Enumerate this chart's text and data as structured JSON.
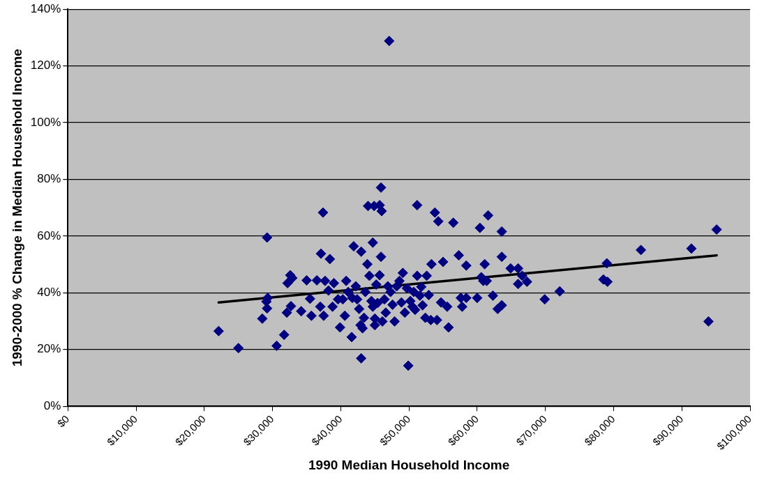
{
  "chart_data": {
    "type": "scatter",
    "xlabel": "1990 Median Household Income",
    "ylabel": "1990-2000 % Change in Median Household Income",
    "xlim": [
      0,
      100000
    ],
    "xticks": [
      {
        "value": 0,
        "label": "$0"
      },
      {
        "value": 10000,
        "label": "$10,000"
      },
      {
        "value": 20000,
        "label": "$20,000"
      },
      {
        "value": 30000,
        "label": "$30,000"
      },
      {
        "value": 40000,
        "label": "$40,000"
      },
      {
        "value": 50000,
        "label": "$50,000"
      },
      {
        "value": 60000,
        "label": "$60,000"
      },
      {
        "value": 70000,
        "label": "$70,000"
      },
      {
        "value": 80000,
        "label": "$80,000"
      },
      {
        "value": 90000,
        "label": "$90,000"
      },
      {
        "value": 100000,
        "label": "$100,000"
      }
    ],
    "ylim": [
      0,
      140
    ],
    "yticks": [
      {
        "value": 0,
        "label": "0%"
      },
      {
        "value": 20,
        "label": "20%"
      },
      {
        "value": 40,
        "label": "40%"
      },
      {
        "value": 60,
        "label": "60%"
      },
      {
        "value": 80,
        "label": "80%"
      },
      {
        "value": 100,
        "label": "100%"
      },
      {
        "value": 120,
        "label": "120%"
      },
      {
        "value": 140,
        "label": "140%"
      }
    ],
    "grid": "y",
    "legend": false,
    "marker": "diamond",
    "series": [
      {
        "type": "scatter",
        "color": "#000080",
        "x": [
          22100,
          25000,
          28500,
          29200,
          29100,
          29300,
          29200,
          30600,
          31700,
          32100,
          32200,
          32600,
          32700,
          32900,
          34200,
          35000,
          35500,
          35700,
          36500,
          37000,
          37100,
          37400,
          37500,
          37700,
          38200,
          38400,
          38800,
          39000,
          39600,
          39900,
          40300,
          40600,
          40800,
          41100,
          41600,
          41700,
          41900,
          42200,
          42400,
          42700,
          42900,
          43000,
          43200,
          43000,
          43400,
          43600,
          43900,
          44000,
          44200,
          44500,
          44700,
          44900,
          44700,
          45000,
          45000,
          45200,
          45400,
          45700,
          45900,
          46000,
          45900,
          45700,
          46100,
          46400,
          46600,
          46900,
          47100,
          47300,
          47600,
          47900,
          48200,
          48600,
          48900,
          49100,
          49400,
          49700,
          49900,
          50200,
          50500,
          50700,
          50900,
          51200,
          51200,
          51600,
          51800,
          52000,
          52400,
          52600,
          52900,
          53200,
          53300,
          53800,
          54100,
          54300,
          54700,
          55000,
          55600,
          55800,
          56500,
          57300,
          57600,
          57800,
          58400,
          58400,
          60000,
          60400,
          60600,
          60900,
          61100,
          61600,
          61400,
          62300,
          63000,
          63600,
          63600,
          63600,
          64900,
          66000,
          66000,
          66600,
          67300,
          69900,
          72100,
          78500,
          79000,
          79100,
          84000,
          91400,
          93900,
          95100
        ],
        "values": [
          26.5,
          20.5,
          30.9,
          59.5,
          36.9,
          38.2,
          34.5,
          21.3,
          25.2,
          33.0,
          43.4,
          46.2,
          35.3,
          45.2,
          33.5,
          44.4,
          37.9,
          31.9,
          44.4,
          35.1,
          53.8,
          68.3,
          31.9,
          44.2,
          40.8,
          51.9,
          35.1,
          43.4,
          37.7,
          27.8,
          37.7,
          31.9,
          44.2,
          40.3,
          24.4,
          38.2,
          56.4,
          42.3,
          37.7,
          34.3,
          28.6,
          16.9,
          27.5,
          54.5,
          31.2,
          40.3,
          50.1,
          70.6,
          46.0,
          37.1,
          35.1,
          70.6,
          57.7,
          30.9,
          28.6,
          42.9,
          36.4,
          70.9,
          77.1,
          68.8,
          52.7,
          46.2,
          29.9,
          37.7,
          33.0,
          42.3,
          128.8,
          40.3,
          35.8,
          29.9,
          42.3,
          44.2,
          36.6,
          47.0,
          33.0,
          41.6,
          14.3,
          37.1,
          35.1,
          40.3,
          34.0,
          70.9,
          46.0,
          39.0,
          42.1,
          35.6,
          31.2,
          46.0,
          39.2,
          30.4,
          50.1,
          68.3,
          30.4,
          65.2,
          36.6,
          50.9,
          35.1,
          27.8,
          64.7,
          53.2,
          38.2,
          35.1,
          49.6,
          38.2,
          38.2,
          62.9,
          45.5,
          44.2,
          50.1,
          67.3,
          44.2,
          39.0,
          34.3,
          61.6,
          52.7,
          35.6,
          48.6,
          48.6,
          43.1,
          46.0,
          43.9,
          37.7,
          40.5,
          44.7,
          50.4,
          43.9,
          55.1,
          55.6,
          29.9,
          62.3
        ]
      },
      {
        "type": "line",
        "color": "#000000",
        "marker": "none",
        "x": [
          22100,
          95100
        ],
        "values": [
          36.6,
          53.2
        ]
      }
    ]
  }
}
